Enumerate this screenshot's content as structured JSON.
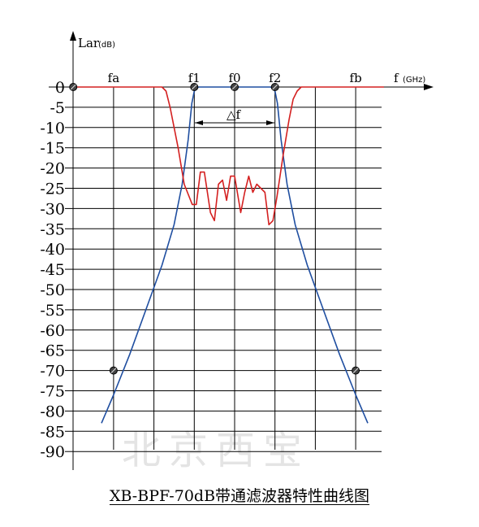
{
  "caption": "XB-BPF-70dB带通滤波器特性曲线图",
  "watermark": "北京西宝",
  "colors": {
    "stopband_curve": "#1f4ea0",
    "passband_curve": "#d42020",
    "grid": "#000000"
  },
  "chart_data": {
    "type": "line",
    "y_axis_label": "Lar",
    "y_axis_unit": "(dB)",
    "x_axis_label": "f",
    "x_axis_unit": "(GHz)",
    "ylim": [
      -90,
      0
    ],
    "y_ticks": [
      "0",
      "-5",
      "-10",
      "-15",
      "-20",
      "-25",
      "-30",
      "-35",
      "-40",
      "-45",
      "-50",
      "-55",
      "-60",
      "-65",
      "-70",
      "-75",
      "-80",
      "-85",
      "-90"
    ],
    "x_ticks": [
      "fa",
      "f1",
      "f0",
      "f2",
      "fb"
    ],
    "bandwidth_label": "△f",
    "markers": [
      {
        "label": "origin",
        "x": -4,
        "y": 0
      },
      {
        "label": "f1",
        "x": -1,
        "y": 0
      },
      {
        "label": "f0",
        "x": 0,
        "y": 0
      },
      {
        "label": "f2",
        "x": 1,
        "y": 0
      },
      {
        "label": "fa",
        "x": -3,
        "y": -70
      },
      {
        "label": "fb",
        "x": 3,
        "y": -70
      }
    ],
    "series": [
      {
        "color": "#1f4ea0",
        "points": [
          [
            -3.3,
            -83
          ],
          [
            -3.0,
            -76
          ],
          [
            -2.6,
            -66
          ],
          [
            -2.2,
            -55
          ],
          [
            -1.8,
            -44
          ],
          [
            -1.5,
            -34
          ],
          [
            -1.3,
            -24
          ],
          [
            -1.15,
            -13
          ],
          [
            -1.06,
            -4
          ],
          [
            -1.0,
            -1
          ],
          [
            -0.9,
            0
          ],
          [
            0.9,
            0
          ],
          [
            1.0,
            -1
          ],
          [
            1.06,
            -4
          ],
          [
            1.15,
            -13
          ],
          [
            1.3,
            -24
          ],
          [
            1.5,
            -34
          ],
          [
            1.8,
            -44
          ],
          [
            2.2,
            -55
          ],
          [
            2.6,
            -66
          ],
          [
            3.0,
            -76
          ],
          [
            3.3,
            -83
          ]
        ]
      },
      {
        "color": "#d42020",
        "points": [
          [
            -4.0,
            0
          ],
          [
            -1.8,
            0
          ],
          [
            -1.7,
            -1
          ],
          [
            -1.6,
            -5
          ],
          [
            -1.4,
            -15
          ],
          [
            -1.25,
            -24
          ],
          [
            -1.05,
            -29
          ],
          [
            -0.95,
            -29
          ],
          [
            -0.85,
            -21
          ],
          [
            -0.75,
            -21
          ],
          [
            -0.6,
            -31
          ],
          [
            -0.5,
            -33
          ],
          [
            -0.4,
            -24
          ],
          [
            -0.3,
            -23
          ],
          [
            -0.2,
            -28
          ],
          [
            -0.1,
            -22
          ],
          [
            0.0,
            -22
          ],
          [
            0.15,
            -31
          ],
          [
            0.25,
            -26
          ],
          [
            0.35,
            -22
          ],
          [
            0.45,
            -26
          ],
          [
            0.55,
            -24
          ],
          [
            0.65,
            -25
          ],
          [
            0.75,
            -26
          ],
          [
            0.85,
            -34
          ],
          [
            0.95,
            -33
          ],
          [
            1.05,
            -27
          ],
          [
            1.2,
            -17
          ],
          [
            1.35,
            -8
          ],
          [
            1.45,
            -3
          ],
          [
            1.55,
            -1
          ],
          [
            1.65,
            0
          ],
          [
            3.7,
            0
          ]
        ]
      }
    ]
  }
}
